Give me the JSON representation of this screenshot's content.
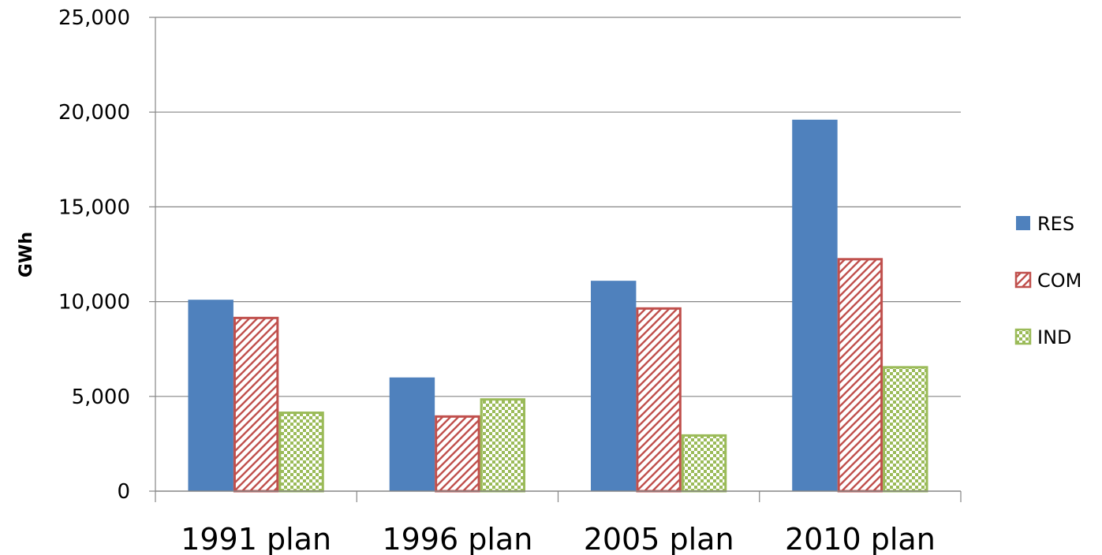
{
  "chart_data": {
    "type": "bar",
    "title": "",
    "xlabel": "",
    "ylabel": "GWh",
    "ylim": [
      0,
      25000
    ],
    "yticks": [
      0,
      5000,
      10000,
      15000,
      20000,
      25000
    ],
    "ytick_labels": [
      "0",
      "5,000",
      "10,000",
      "15,000",
      "20,000",
      "25,000"
    ],
    "grid": true,
    "legend_position": "right",
    "categories": [
      "1991 plan",
      "1996 plan",
      "2005 plan",
      "2010 plan"
    ],
    "series": [
      {
        "name": "RES",
        "values": [
          10100,
          6000,
          11100,
          19600
        ],
        "color": "#4F81BD",
        "pattern": "solid"
      },
      {
        "name": "COM",
        "values": [
          9200,
          4000,
          9700,
          12300
        ],
        "color": "#C0504D",
        "pattern": "diagonal-hatch"
      },
      {
        "name": "IND",
        "values": [
          4200,
          4900,
          3000,
          6600
        ],
        "color": "#9BBB59",
        "pattern": "checker"
      }
    ]
  }
}
